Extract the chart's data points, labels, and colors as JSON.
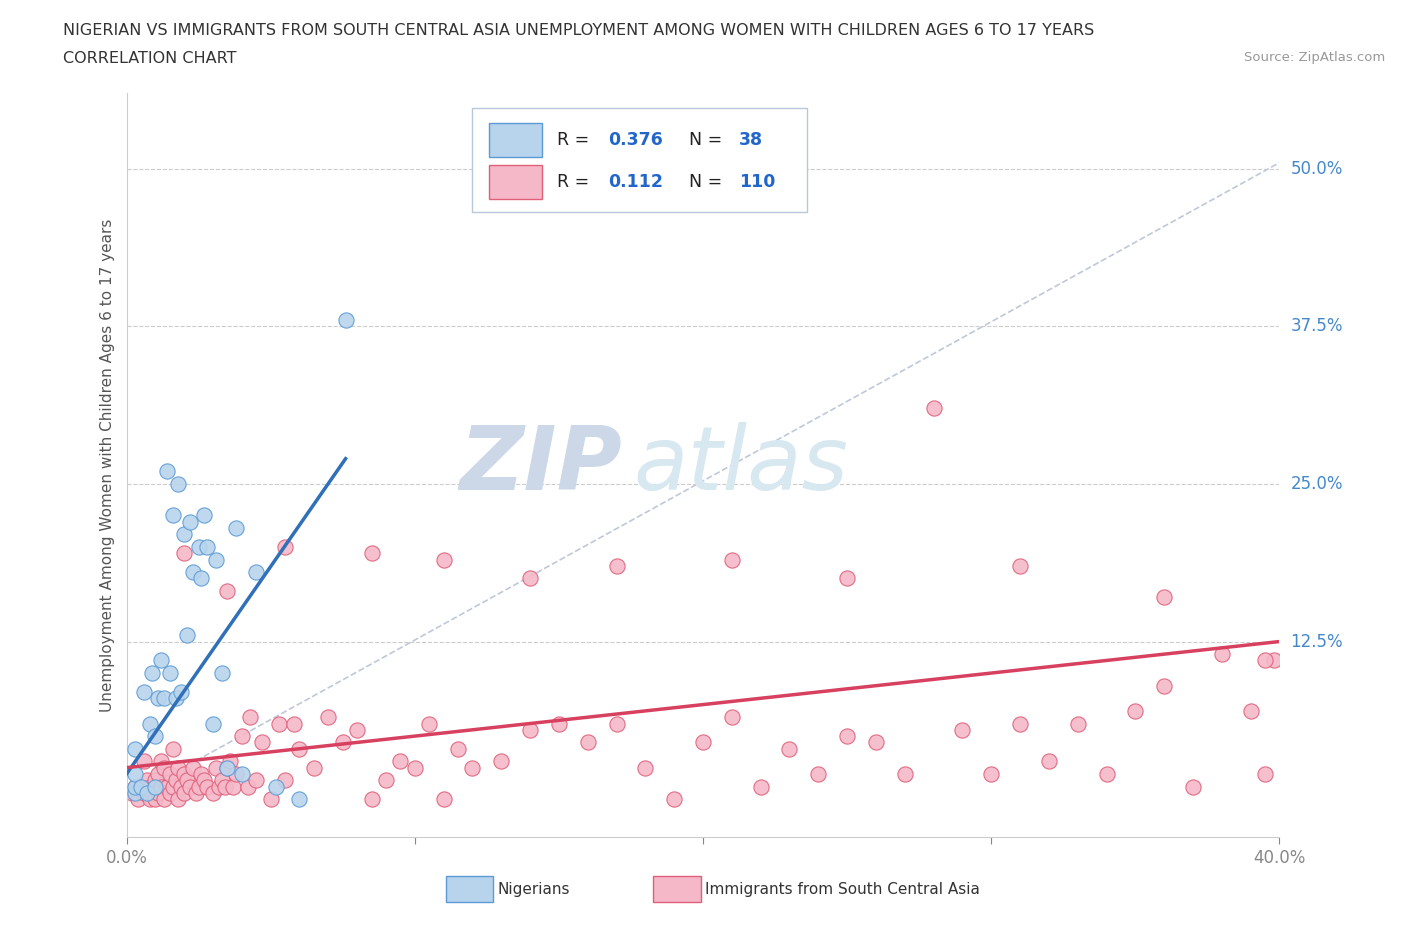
{
  "title_line1": "NIGERIAN VS IMMIGRANTS FROM SOUTH CENTRAL ASIA UNEMPLOYMENT AMONG WOMEN WITH CHILDREN AGES 6 TO 17 YEARS",
  "title_line2": "CORRELATION CHART",
  "source": "Source: ZipAtlas.com",
  "ylabel": "Unemployment Among Women with Children Ages 6 to 17 years",
  "xlim": [
    0.0,
    0.4
  ],
  "ylim": [
    -0.03,
    0.56
  ],
  "yticks_right_vals": [
    0.5,
    0.375,
    0.25,
    0.125
  ],
  "yticks_right_labels": [
    "50.0%",
    "37.5%",
    "25.0%",
    "12.5%"
  ],
  "grid_color": "#cccccc",
  "background_color": "#ffffff",
  "watermark_part1": "ZIP",
  "watermark_part2": "atlas",
  "nigerians_color": "#b8d4ed",
  "nigerians_edge": "#5b9bd5",
  "immigrants_color": "#f4b8c8",
  "immigrants_edge": "#e0607a",
  "nigerian_line_color": "#3070b8",
  "immigrant_line_color": "#d84060",
  "diagonal_color": "#c0c8d8",
  "legend_box_color": "#e8f0f8",
  "legend_box_edge": "#a8b8d0",
  "nig_x": [
    0.003,
    0.003,
    0.003,
    0.003,
    0.005,
    0.006,
    0.007,
    0.008,
    0.009,
    0.01,
    0.01,
    0.011,
    0.012,
    0.013,
    0.014,
    0.015,
    0.016,
    0.017,
    0.018,
    0.019,
    0.02,
    0.021,
    0.022,
    0.023,
    0.025,
    0.026,
    0.027,
    0.028,
    0.03,
    0.031,
    0.033,
    0.035,
    0.038,
    0.04,
    0.045,
    0.052,
    0.06,
    0.076
  ],
  "nig_y": [
    0.005,
    0.01,
    0.02,
    0.04,
    0.01,
    0.085,
    0.005,
    0.06,
    0.1,
    0.01,
    0.05,
    0.08,
    0.11,
    0.08,
    0.26,
    0.1,
    0.225,
    0.08,
    0.25,
    0.085,
    0.21,
    0.13,
    0.22,
    0.18,
    0.2,
    0.175,
    0.225,
    0.2,
    0.06,
    0.19,
    0.1,
    0.025,
    0.215,
    0.02,
    0.18,
    0.01,
    0.0,
    0.38
  ],
  "imm_x": [
    0.002,
    0.003,
    0.004,
    0.005,
    0.006,
    0.006,
    0.007,
    0.007,
    0.008,
    0.008,
    0.009,
    0.01,
    0.01,
    0.011,
    0.011,
    0.012,
    0.012,
    0.013,
    0.013,
    0.014,
    0.015,
    0.015,
    0.016,
    0.016,
    0.017,
    0.018,
    0.018,
    0.019,
    0.02,
    0.02,
    0.021,
    0.022,
    0.023,
    0.024,
    0.025,
    0.026,
    0.027,
    0.028,
    0.03,
    0.031,
    0.032,
    0.033,
    0.034,
    0.035,
    0.036,
    0.037,
    0.038,
    0.04,
    0.042,
    0.043,
    0.045,
    0.047,
    0.05,
    0.053,
    0.055,
    0.058,
    0.06,
    0.065,
    0.07,
    0.075,
    0.08,
    0.085,
    0.09,
    0.095,
    0.1,
    0.105,
    0.11,
    0.115,
    0.12,
    0.13,
    0.14,
    0.15,
    0.16,
    0.17,
    0.18,
    0.19,
    0.2,
    0.21,
    0.22,
    0.23,
    0.24,
    0.25,
    0.26,
    0.27,
    0.28,
    0.29,
    0.3,
    0.31,
    0.32,
    0.33,
    0.34,
    0.35,
    0.36,
    0.37,
    0.38,
    0.39,
    0.395,
    0.398,
    0.02,
    0.035,
    0.055,
    0.085,
    0.11,
    0.14,
    0.17,
    0.21,
    0.25,
    0.31,
    0.36,
    0.395
  ],
  "imm_y": [
    0.005,
    0.01,
    0.0,
    0.01,
    0.005,
    0.03,
    0.005,
    0.015,
    0.0,
    0.01,
    0.005,
    0.0,
    0.015,
    0.005,
    0.02,
    0.01,
    0.03,
    0.0,
    0.025,
    0.01,
    0.005,
    0.02,
    0.01,
    0.04,
    0.015,
    0.0,
    0.025,
    0.01,
    0.005,
    0.02,
    0.015,
    0.01,
    0.025,
    0.005,
    0.01,
    0.02,
    0.015,
    0.01,
    0.005,
    0.025,
    0.01,
    0.015,
    0.01,
    0.025,
    0.03,
    0.01,
    0.02,
    0.05,
    0.01,
    0.065,
    0.015,
    0.045,
    0.0,
    0.06,
    0.015,
    0.06,
    0.04,
    0.025,
    0.065,
    0.045,
    0.055,
    0.0,
    0.015,
    0.03,
    0.025,
    0.06,
    0.0,
    0.04,
    0.025,
    0.03,
    0.055,
    0.06,
    0.045,
    0.06,
    0.025,
    0.0,
    0.045,
    0.065,
    0.01,
    0.04,
    0.02,
    0.05,
    0.045,
    0.02,
    0.31,
    0.055,
    0.02,
    0.06,
    0.03,
    0.06,
    0.02,
    0.07,
    0.09,
    0.01,
    0.115,
    0.07,
    0.02,
    0.11,
    0.195,
    0.165,
    0.2,
    0.195,
    0.19,
    0.175,
    0.185,
    0.19,
    0.175,
    0.185,
    0.16,
    0.11
  ],
  "nig_line_x": [
    0.0,
    0.076
  ],
  "nig_line_y": [
    0.02,
    0.27
  ],
  "imm_line_x": [
    0.0,
    0.4
  ],
  "imm_line_y": [
    0.025,
    0.125
  ]
}
